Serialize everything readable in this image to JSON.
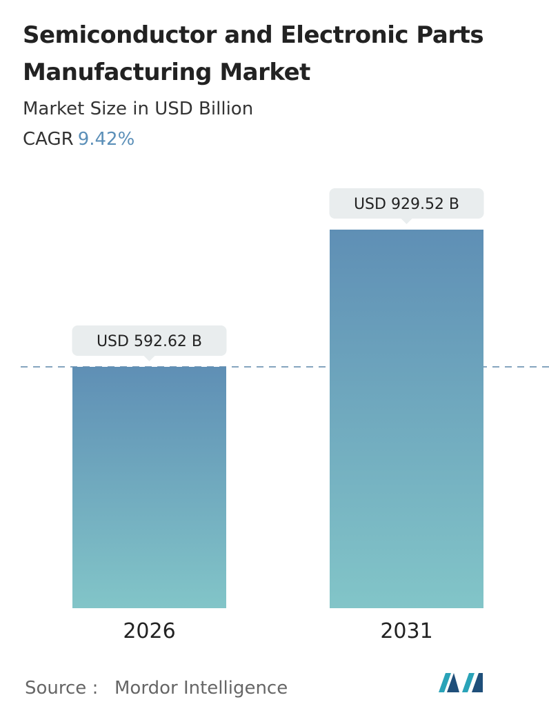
{
  "chart_data": {
    "type": "bar",
    "title": "Semiconductor and Electronic Parts Manufacturing Market",
    "subtitle": "Market Size in USD Billion",
    "cagr_label": "CAGR",
    "cagr_value": "9.42%",
    "categories": [
      "2026",
      "2031"
    ],
    "values": [
      592.62,
      929.52
    ],
    "value_labels": [
      "USD 592.62 B",
      "USD 929.52 B"
    ],
    "color_top": "#5f8fb5",
    "color_bottom": "#82c5c8",
    "source_label": "Source :",
    "source": "Mordor Intelligence"
  }
}
